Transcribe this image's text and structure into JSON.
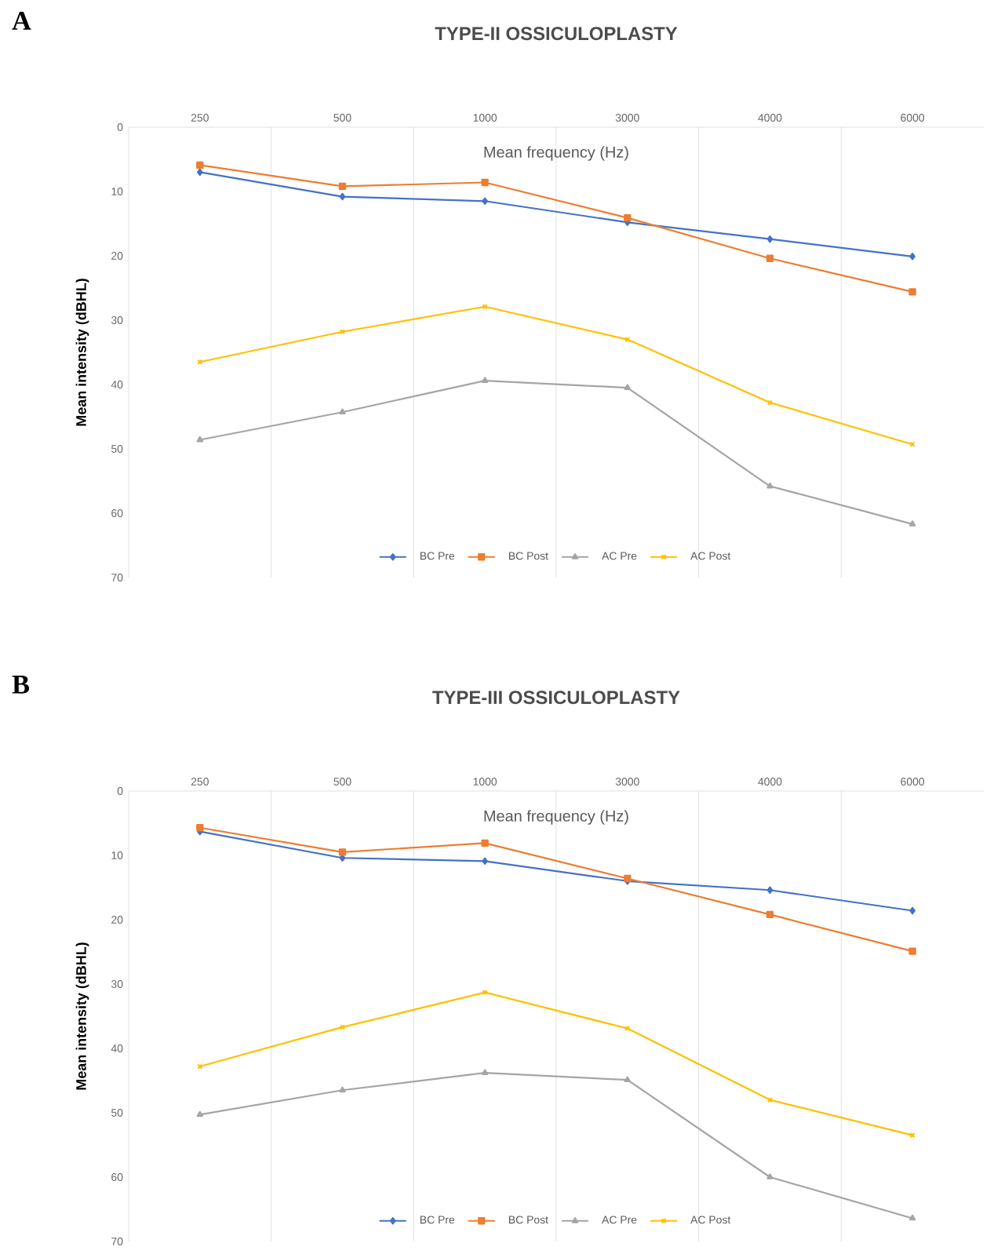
{
  "chart_data": [
    {
      "type": "line",
      "title": "TYPE-II OSSICULOPLASTY",
      "xlabel": "Mean frequency (Hz)",
      "ylabel": "Mean intensity (dBHL)",
      "annotations": [
        "A"
      ],
      "categories": [
        "250",
        "500",
        "1000",
        "3000",
        "4000",
        "6000"
      ],
      "ylim": [
        70,
        0
      ],
      "yticks": [
        0,
        10,
        20,
        30,
        40,
        50,
        60,
        70
      ],
      "grid": "x",
      "legend": "bottom",
      "series": [
        {
          "name": "BC Pre",
          "color": "#4472c4",
          "marker": "diamond",
          "values": [
            7.0,
            10.8,
            11.5,
            14.8,
            17.4,
            20.1
          ]
        },
        {
          "name": "BC Post",
          "color": "#ed7d31",
          "marker": "square",
          "values": [
            5.9,
            9.2,
            8.6,
            14.1,
            20.4,
            25.6
          ]
        },
        {
          "name": "AC Pre",
          "color": "#a5a5a5",
          "marker": "triangle",
          "values": [
            48.6,
            44.3,
            39.4,
            40.5,
            55.8,
            61.7
          ]
        },
        {
          "name": "AC Post",
          "color": "#ffc000",
          "marker": "cross",
          "values": [
            36.5,
            31.8,
            27.9,
            33.0,
            42.8,
            49.3
          ]
        }
      ]
    },
    {
      "type": "line",
      "title": "TYPE-III OSSICULOPLASTY",
      "xlabel": "Mean frequency (Hz)",
      "ylabel": "Mean intensity (dBHL)",
      "annotations": [
        "B"
      ],
      "categories": [
        "250",
        "500",
        "1000",
        "3000",
        "4000",
        "6000"
      ],
      "ylim": [
        70,
        0
      ],
      "yticks": [
        0,
        10,
        20,
        30,
        40,
        50,
        60,
        70
      ],
      "grid": "x",
      "legend": "bottom",
      "series": [
        {
          "name": "BC Pre",
          "color": "#4472c4",
          "marker": "diamond",
          "values": [
            6.3,
            10.4,
            10.9,
            14.0,
            15.4,
            18.6
          ]
        },
        {
          "name": "BC Post",
          "color": "#ed7d31",
          "marker": "square",
          "values": [
            5.7,
            9.5,
            8.1,
            13.6,
            19.2,
            24.9
          ]
        },
        {
          "name": "AC Pre",
          "color": "#a5a5a5",
          "marker": "triangle",
          "values": [
            50.3,
            46.5,
            43.8,
            44.9,
            60.0,
            66.4
          ]
        },
        {
          "name": "AC Post",
          "color": "#ffc000",
          "marker": "cross",
          "values": [
            42.8,
            36.7,
            31.3,
            36.9,
            48.0,
            53.5
          ]
        }
      ]
    }
  ]
}
